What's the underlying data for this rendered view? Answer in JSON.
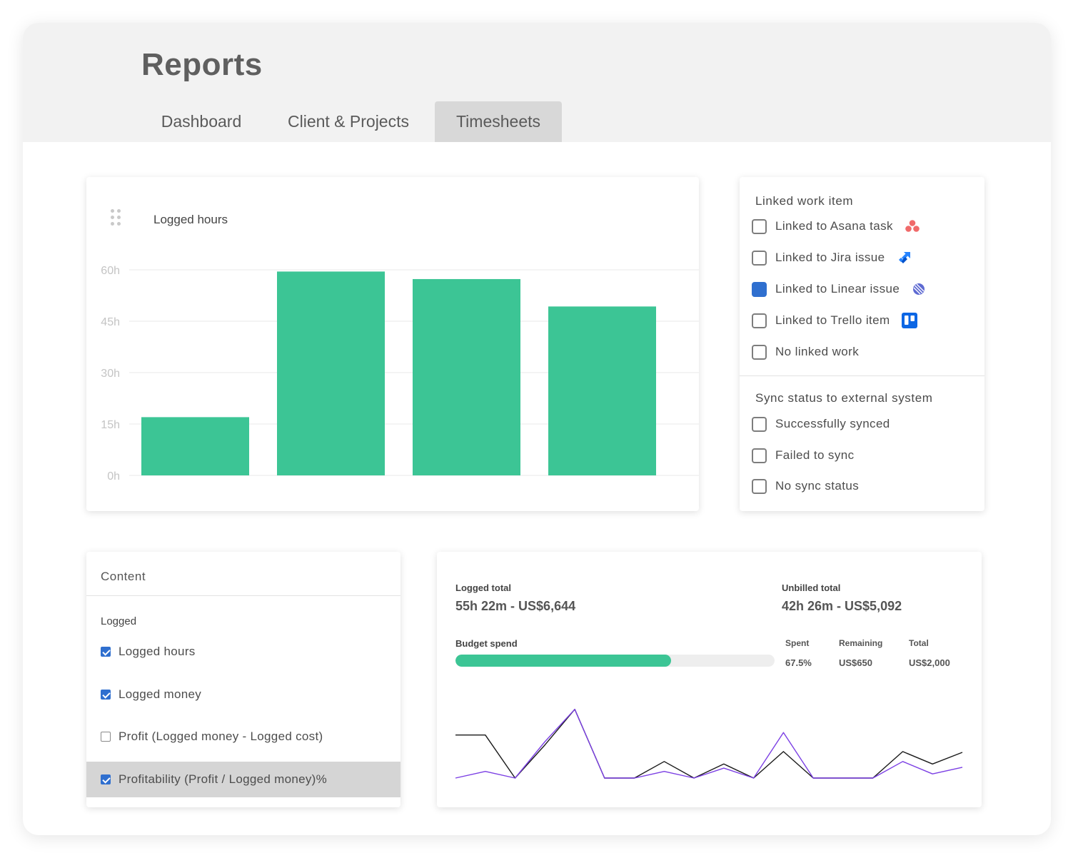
{
  "page": {
    "title": "Reports"
  },
  "tabs": [
    {
      "label": "Dashboard",
      "active": false
    },
    {
      "label": "Client & Projects",
      "active": false
    },
    {
      "label": "Timesheets",
      "active": true
    }
  ],
  "logged_hours_card": {
    "title": "Logged hours"
  },
  "chart_data": {
    "type": "bar",
    "title": "Logged hours",
    "categories": [
      "",
      "",
      "",
      ""
    ],
    "values": [
      17,
      59.5,
      57.3,
      49.3
    ],
    "ylim": [
      0,
      60
    ],
    "yticks": [
      0,
      15,
      30,
      45,
      60
    ],
    "ytick_labels": [
      "0h",
      "15h",
      "30h",
      "45h",
      "60h"
    ],
    "grid": true,
    "bar_color": "#3cc595"
  },
  "linked_work": {
    "title": "Linked work item",
    "options": [
      {
        "label": "Linked to Asana task",
        "checked": false,
        "icon": "asana-icon"
      },
      {
        "label": "Linked to Jira issue",
        "checked": false,
        "icon": "jira-icon"
      },
      {
        "label": "Linked to Linear issue",
        "checked": true,
        "icon": "linear-icon"
      },
      {
        "label": "Linked to Trello item",
        "checked": false,
        "icon": "trello-icon"
      },
      {
        "label": "No linked work",
        "checked": false,
        "icon": ""
      }
    ]
  },
  "sync_status": {
    "title": "Sync status to external system",
    "options": [
      {
        "label": "Successfully synced",
        "checked": false
      },
      {
        "label": "Failed to sync",
        "checked": false
      },
      {
        "label": "No sync status",
        "checked": false
      }
    ]
  },
  "content": {
    "title": "Content",
    "subtitle": "Logged",
    "options": [
      {
        "label": "Logged hours",
        "checked": true,
        "selected": false
      },
      {
        "label": "Logged money",
        "checked": true,
        "selected": false
      },
      {
        "label": "Profit (Logged money - Logged cost)",
        "checked": false,
        "selected": false
      },
      {
        "label": "Profitability (Profit / Logged money)%",
        "checked": true,
        "selected": true
      }
    ]
  },
  "totals": {
    "logged_label": "Logged total",
    "logged_value": "55h 22m - US$6,644",
    "unbilled_label": "Unbilled total",
    "unbilled_value": "42h 26m - US$5,092",
    "budget_label": "Budget spend",
    "budget_fraction": 0.675,
    "spent_label": "Spent",
    "spent_value": "67.5%",
    "remaining_label": "Remaining",
    "remaining_value": "US$650",
    "total_label": "Total",
    "total_value": "US$2,000"
  },
  "trend_chart": {
    "type": "line",
    "ylim": [
      0,
      10
    ],
    "series": [
      {
        "color": "#1a1a1a",
        "values": [
          5.2,
          5.2,
          0,
          4.0,
          8.3,
          0,
          0,
          2.0,
          0,
          1.7,
          0,
          3.2,
          0,
          0,
          0,
          3.2,
          1.7,
          3.1
        ]
      },
      {
        "color": "#7b3fe4",
        "values": [
          0,
          0.8,
          0,
          4.4,
          8.3,
          0,
          0,
          0.8,
          0,
          1.2,
          0,
          5.5,
          0,
          0,
          0,
          2.0,
          0.5,
          1.3
        ]
      }
    ]
  },
  "colors": {
    "accent_green": "#3cc595",
    "checkbox_blue": "#2f6fcf",
    "asana": "#f06a6a",
    "jira": "#2684ff",
    "linear": "#5e6ad2",
    "trello": "#0c66e4"
  }
}
